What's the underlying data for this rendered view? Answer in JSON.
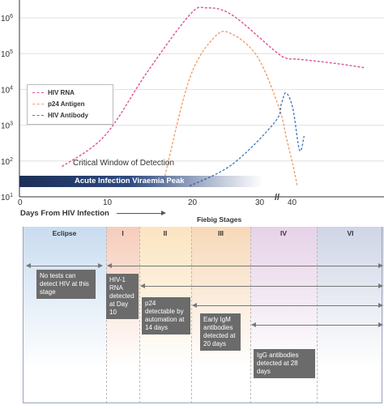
{
  "chart_data": {
    "type": "line",
    "x": [
      0,
      5,
      10,
      15,
      20,
      22,
      25,
      30,
      35,
      40,
      45,
      50,
      55,
      60,
      70
    ],
    "xlabel": "Days From HIV Infection",
    "ylabel": "",
    "y_scale": "log",
    "ylim": [
      10,
      10000000
    ],
    "tick_labels_x": [
      "0",
      "10",
      "20",
      "30",
      "40"
    ],
    "tick_labels_y": [
      "10^1",
      "10^2",
      "10^3",
      "10^4",
      "10^5",
      "10^6"
    ],
    "y_tick_bases": [
      "10",
      "10",
      "10",
      "10",
      "10",
      "10"
    ],
    "y_tick_exponents": [
      "1",
      "2",
      "3",
      "4",
      "5",
      "6"
    ],
    "axis_break_label": "//",
    "legend_position": "left",
    "series": [
      {
        "name": "HIV RNA",
        "color": "#e0509a",
        "points": [
          [
            5,
            70
          ],
          [
            10,
            500
          ],
          [
            15,
            30000
          ],
          [
            20,
            1200000
          ],
          [
            22,
            1900000
          ],
          [
            25,
            1200000
          ],
          [
            30,
            120000
          ],
          [
            35,
            75000
          ],
          [
            40,
            70000
          ],
          [
            50,
            60000
          ],
          [
            60,
            50000
          ],
          [
            70,
            40000
          ]
        ]
      },
      {
        "name": "p24 Antigen",
        "color": "#f2a06a",
        "points": [
          [
            17,
            30
          ],
          [
            20,
            20000
          ],
          [
            23,
            300000
          ],
          [
            25,
            350000
          ],
          [
            28,
            80000
          ],
          [
            32,
            3000
          ],
          [
            35,
            500
          ],
          [
            38,
            80
          ],
          [
            40,
            20
          ]
        ]
      },
      {
        "name": "HIV Antibody",
        "color": "#4a7fc1",
        "points": [
          [
            20,
            20
          ],
          [
            25,
            80
          ],
          [
            30,
            1200
          ],
          [
            33,
            4000
          ],
          [
            35,
            8000
          ],
          [
            38,
            3000
          ],
          [
            41,
            200
          ],
          [
            43,
            500
          ]
        ]
      }
    ],
    "annotations": {
      "critical_window": "Critical Window of Detection",
      "acute_bar": "Acute Infection Viraemia Peak"
    }
  },
  "timeline": {
    "fiebig_title": "Fiebig Stages",
    "stages": [
      {
        "name": "Eclipse",
        "color": "#c9dcf0"
      },
      {
        "name": "I",
        "color": "#f6cdbb"
      },
      {
        "name": "II",
        "color": "#fbe4c0"
      },
      {
        "name": "III",
        "color": "#f7d8b8"
      },
      {
        "name": "IV",
        "color": "#e6d2e8"
      },
      {
        "name": "VI",
        "color": "#cfd5e6"
      }
    ],
    "boxes": {
      "no_tests": "No tests can detect HIV at this stage",
      "rna": "HIV-1 RNA detected at Day 10",
      "p24": "p24 detectable by automation at 14 days",
      "igm": "Early IgM antibodies detected at 20 days",
      "igg": "IgG antibodies detected at 28 days"
    }
  }
}
